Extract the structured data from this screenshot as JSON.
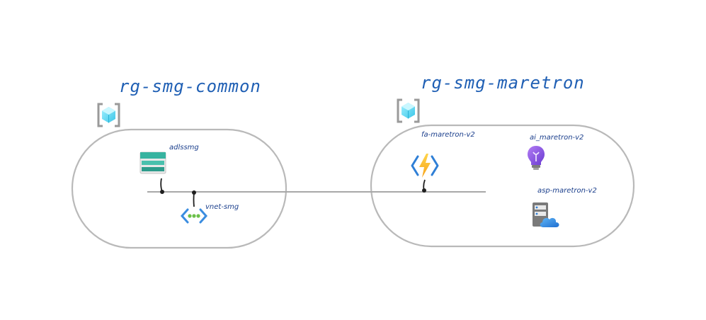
{
  "groups": [
    {
      "title": "rg-smg-common",
      "resources": {
        "storage": "adlssmg",
        "vnet": "vnet-smg"
      }
    },
    {
      "title": "rg-smg-maretron",
      "resources": {
        "function_app": "fa-maretron-v2",
        "app_insights": "ai_maretron-v2",
        "app_service_plan": "asp-maretron-v2"
      }
    }
  ],
  "icons": {
    "resource_group": "resource-group-icon",
    "storage": "storage-account-icon",
    "vnet": "virtual-network-icon",
    "function_app": "function-app-icon",
    "app_insights": "application-insights-icon",
    "app_service_plan": "app-service-plan-icon"
  },
  "colors": {
    "handwriting": "#1f5fb4",
    "outline": "#b9b9b9",
    "connector": "#a8a8a8"
  }
}
